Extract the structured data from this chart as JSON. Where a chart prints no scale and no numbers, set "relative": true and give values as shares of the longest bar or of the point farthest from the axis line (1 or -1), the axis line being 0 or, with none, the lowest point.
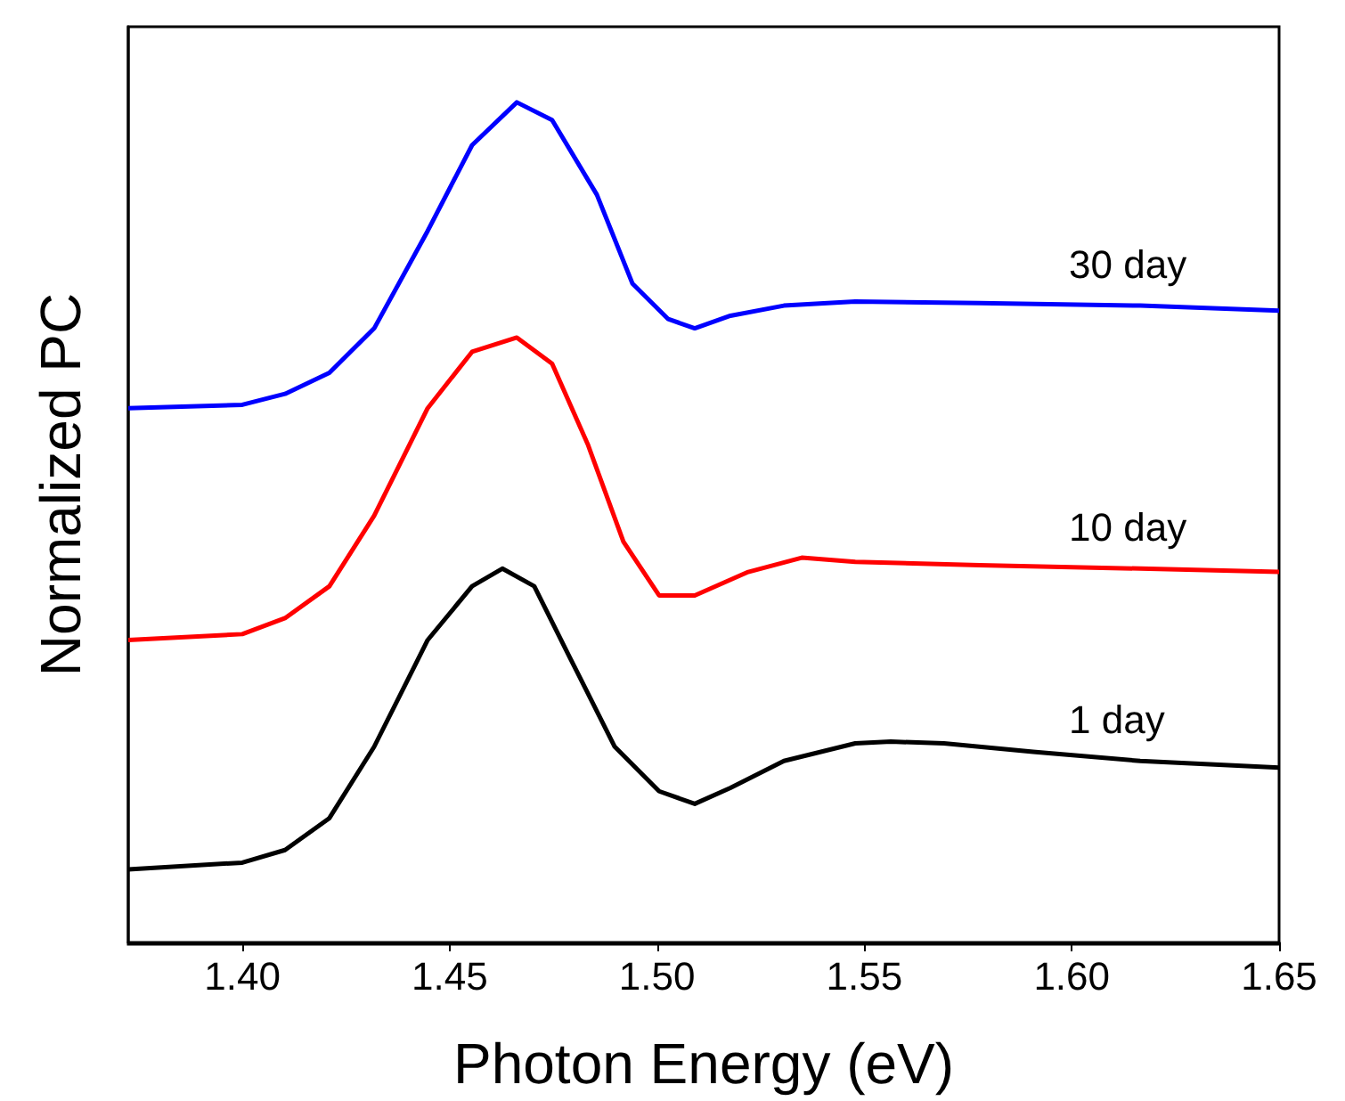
{
  "chart_data": {
    "type": "line",
    "xlabel": "Photon Energy (eV)",
    "ylabel": "Normalized PC",
    "relative": true,
    "xlim": [
      1.3725,
      1.65
    ],
    "xticks": [
      {
        "value": 1.4,
        "label": "1.40"
      },
      1.45,
      {
        "value": 1.5,
        "label": "1.50"
      },
      1.55,
      {
        "value": 1.6,
        "label": "1.60"
      },
      1.65
    ],
    "grid": false,
    "legend": false,
    "marker": "none",
    "line_style": "solid",
    "series": [
      {
        "name": "1 day",
        "color": "#000000",
        "x": [
          1.3725,
          1.4,
          1.4103,
          1.421,
          1.4318,
          1.4447,
          1.4554,
          1.4627,
          1.4704,
          1.479,
          1.4898,
          1.5005,
          1.5091,
          1.5177,
          1.5306,
          1.5478,
          1.5564,
          1.5692,
          1.5907,
          1.6165,
          1.65
        ],
        "values": [
          0.087,
          0.095,
          0.11,
          0.148,
          0.233,
          0.36,
          0.424,
          0.445,
          0.424,
          0.339,
          0.233,
          0.18,
          0.165,
          0.184,
          0.216,
          0.237,
          0.239,
          0.237,
          0.227,
          0.216,
          0.208
        ]
      },
      {
        "name": "10 day",
        "color": "#ff0000",
        "x": [
          1.3725,
          1.4,
          1.4103,
          1.421,
          1.4318,
          1.4447,
          1.4554,
          1.4662,
          1.4747,
          1.4833,
          1.4919,
          1.5005,
          1.5091,
          1.522,
          1.5349,
          1.5478,
          1.5778,
          1.6165,
          1.65
        ],
        "values": [
          0.36,
          0.367,
          0.386,
          0.424,
          0.508,
          0.636,
          0.703,
          0.72,
          0.689,
          0.593,
          0.477,
          0.413,
          0.413,
          0.441,
          0.458,
          0.453,
          0.449,
          0.445,
          0.441
        ]
      },
      {
        "name": "30 day",
        "color": "#0000ff",
        "x": [
          1.3725,
          1.4,
          1.4103,
          1.421,
          1.4318,
          1.4447,
          1.4554,
          1.4662,
          1.4747,
          1.4855,
          1.4941,
          1.5027,
          1.5091,
          1.5177,
          1.5306,
          1.5478,
          1.5778,
          1.6165,
          1.65
        ],
        "values": [
          0.636,
          0.64,
          0.653,
          0.678,
          0.731,
          0.847,
          0.949,
          1,
          0.979,
          0.89,
          0.784,
          0.742,
          0.731,
          0.746,
          0.758,
          0.763,
          0.761,
          0.758,
          0.752
        ]
      }
    ]
  }
}
